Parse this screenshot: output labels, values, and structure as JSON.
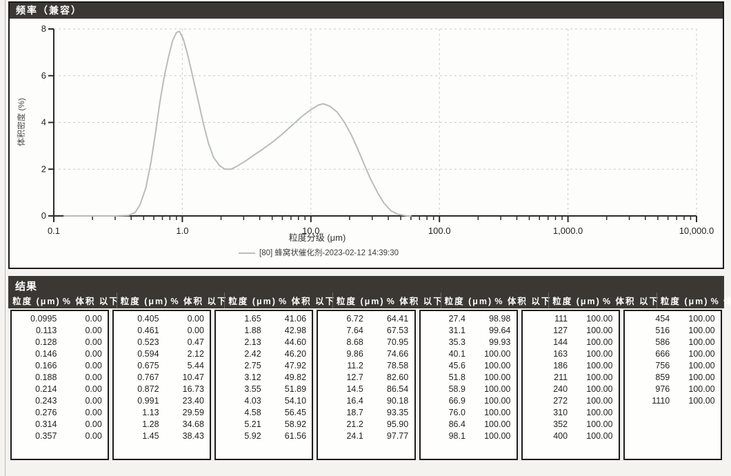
{
  "chart_data": {
    "type": "line",
    "title": "频率（兼容）",
    "xlabel": "粒度分级 (μm)",
    "ylabel": "体积密度 (%)",
    "x_scale": "log",
    "xlim": [
      0.1,
      10000
    ],
    "ylim": [
      0,
      8
    ],
    "grid": true,
    "y_ticks": [
      0,
      2,
      4,
      6,
      8
    ],
    "x_major_ticks": [
      {
        "value": 0.1,
        "label": "0.1"
      },
      {
        "value": 1,
        "label": "1.0"
      },
      {
        "value": 10,
        "label": "10.0"
      },
      {
        "value": 100,
        "label": "100.0"
      },
      {
        "value": 1000,
        "label": "1,000.0"
      },
      {
        "value": 10000,
        "label": "10,000.0"
      }
    ],
    "legend": [
      {
        "label": "[80] 蜂窝状催化剂-2023-02-12 14:39:30",
        "color": "#b6bdba"
      }
    ],
    "series": [
      {
        "name": "[80] 蜂窝状催化剂-2023-02-12 14:39:30",
        "color": "#b6bdba",
        "points": [
          [
            0.12,
            0
          ],
          [
            0.3,
            0
          ],
          [
            0.38,
            0.02
          ],
          [
            0.43,
            0.15
          ],
          [
            0.47,
            0.5
          ],
          [
            0.52,
            1.2
          ],
          [
            0.57,
            2.3
          ],
          [
            0.62,
            3.6
          ],
          [
            0.67,
            4.9
          ],
          [
            0.72,
            5.9
          ],
          [
            0.78,
            6.8
          ],
          [
            0.84,
            7.5
          ],
          [
            0.9,
            7.85
          ],
          [
            0.95,
            7.9
          ],
          [
            1.02,
            7.55
          ],
          [
            1.1,
            6.9
          ],
          [
            1.2,
            6.0
          ],
          [
            1.32,
            5.0
          ],
          [
            1.45,
            4.0
          ],
          [
            1.6,
            3.1
          ],
          [
            1.75,
            2.5
          ],
          [
            1.95,
            2.15
          ],
          [
            2.15,
            2.0
          ],
          [
            2.4,
            2.0
          ],
          [
            2.7,
            2.15
          ],
          [
            3.1,
            2.35
          ],
          [
            3.6,
            2.6
          ],
          [
            4.2,
            2.85
          ],
          [
            5.0,
            3.15
          ],
          [
            6.0,
            3.5
          ],
          [
            7.2,
            3.9
          ],
          [
            8.5,
            4.25
          ],
          [
            10,
            4.55
          ],
          [
            11.5,
            4.75
          ],
          [
            12.5,
            4.8
          ],
          [
            14,
            4.7
          ],
          [
            16,
            4.45
          ],
          [
            18,
            4.05
          ],
          [
            20.5,
            3.5
          ],
          [
            23,
            2.9
          ],
          [
            26,
            2.2
          ],
          [
            29,
            1.6
          ],
          [
            33,
            1.0
          ],
          [
            37,
            0.55
          ],
          [
            42,
            0.22
          ],
          [
            47,
            0.08
          ],
          [
            55,
            0.01
          ],
          [
            60,
            0
          ]
        ]
      }
    ]
  },
  "results_table": {
    "title": "结果",
    "headers": {
      "size": "粒度 (μm)",
      "pct": "% 体积 以下"
    },
    "groups": [
      [
        [
          "0.0995",
          "0.00"
        ],
        [
          "0.113",
          "0.00"
        ],
        [
          "0.128",
          "0.00"
        ],
        [
          "0.146",
          "0.00"
        ],
        [
          "0.166",
          "0.00"
        ],
        [
          "0.188",
          "0.00"
        ],
        [
          "0.214",
          "0.00"
        ],
        [
          "0.243",
          "0.00"
        ],
        [
          "0.276",
          "0.00"
        ],
        [
          "0.314",
          "0.00"
        ],
        [
          "0.357",
          "0.00"
        ]
      ],
      [
        [
          "0.405",
          "0.00"
        ],
        [
          "0.461",
          "0.00"
        ],
        [
          "0.523",
          "0.47"
        ],
        [
          "0.594",
          "2.12"
        ],
        [
          "0.675",
          "5.44"
        ],
        [
          "0.767",
          "10.47"
        ],
        [
          "0.872",
          "16.73"
        ],
        [
          "0.991",
          "23.40"
        ],
        [
          "1.13",
          "29.59"
        ],
        [
          "1.28",
          "34.68"
        ],
        [
          "1.45",
          "38.43"
        ]
      ],
      [
        [
          "1.65",
          "41.06"
        ],
        [
          "1.88",
          "42.98"
        ],
        [
          "2.13",
          "44.60"
        ],
        [
          "2.42",
          "46.20"
        ],
        [
          "2.75",
          "47.92"
        ],
        [
          "3.12",
          "49.82"
        ],
        [
          "3.55",
          "51.89"
        ],
        [
          "4.03",
          "54.10"
        ],
        [
          "4.58",
          "56.45"
        ],
        [
          "5.21",
          "58.92"
        ],
        [
          "5.92",
          "61.56"
        ]
      ],
      [
        [
          "6.72",
          "64.41"
        ],
        [
          "7.64",
          "67.53"
        ],
        [
          "8.68",
          "70.95"
        ],
        [
          "9.86",
          "74.66"
        ],
        [
          "11.2",
          "78.58"
        ],
        [
          "12.7",
          "82.60"
        ],
        [
          "14.5",
          "86.54"
        ],
        [
          "16.4",
          "90.18"
        ],
        [
          "18.7",
          "93.35"
        ],
        [
          "21.2",
          "95.90"
        ],
        [
          "24.1",
          "97.77"
        ]
      ],
      [
        [
          "27.4",
          "98.98"
        ],
        [
          "31.1",
          "99.64"
        ],
        [
          "35.3",
          "99.93"
        ],
        [
          "40.1",
          "100.00"
        ],
        [
          "45.6",
          "100.00"
        ],
        [
          "51.8",
          "100.00"
        ],
        [
          "58.9",
          "100.00"
        ],
        [
          "66.9",
          "100.00"
        ],
        [
          "76.0",
          "100.00"
        ],
        [
          "86.4",
          "100.00"
        ],
        [
          "98.1",
          "100.00"
        ]
      ],
      [
        [
          "111",
          "100.00"
        ],
        [
          "127",
          "100.00"
        ],
        [
          "144",
          "100.00"
        ],
        [
          "163",
          "100.00"
        ],
        [
          "186",
          "100.00"
        ],
        [
          "211",
          "100.00"
        ],
        [
          "240",
          "100.00"
        ],
        [
          "272",
          "100.00"
        ],
        [
          "310",
          "100.00"
        ],
        [
          "352",
          "100.00"
        ],
        [
          "400",
          "100.00"
        ]
      ],
      [
        [
          "454",
          "100.00"
        ],
        [
          "516",
          "100.00"
        ],
        [
          "586",
          "100.00"
        ],
        [
          "666",
          "100.00"
        ],
        [
          "756",
          "100.00"
        ],
        [
          "859",
          "100.00"
        ],
        [
          "976",
          "100.00"
        ],
        [
          "1110",
          "100.00"
        ]
      ]
    ]
  },
  "colors": {
    "titlebar_bg": "#3b3834",
    "panel_border": "#1b1b1b",
    "curve": "#b6bdba",
    "grid": "#c9c9c9",
    "axis": "#2a2a2a"
  }
}
